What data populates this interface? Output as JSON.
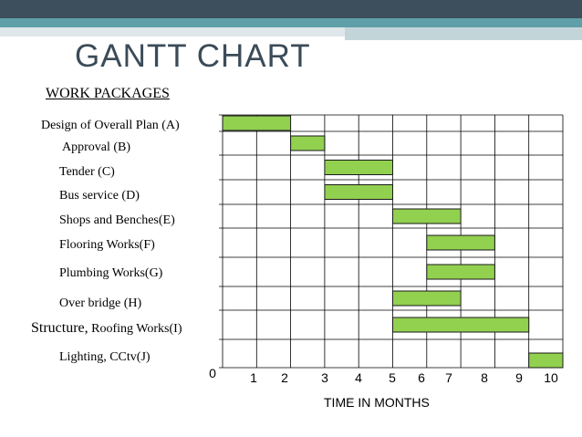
{
  "header": {
    "title": "GANTT CHART",
    "colors": {
      "dark": "#3d4e5c",
      "teal": "#5f9fa8",
      "light": "#dfe7ea"
    }
  },
  "chart_data": {
    "type": "gantt",
    "title": "GANTT CHART",
    "ylabel": "WORK PACKAGES",
    "xlabel": "TIME IN MONTHS",
    "xlim": [
      0,
      10
    ],
    "x_ticks": [
      "0",
      "1",
      "2",
      "3",
      "4",
      "5",
      "6",
      "7",
      "8",
      "9",
      "10"
    ],
    "grid": true,
    "bar_color": "#92d050",
    "tasks": [
      {
        "label": "Design of Overall Plan (A)",
        "start": 0,
        "end": 2
      },
      {
        "label": "Approval (B)",
        "start": 2,
        "end": 3
      },
      {
        "label": "Tender (C)",
        "start": 3,
        "end": 5
      },
      {
        "label": "Bus service (D)",
        "start": 3,
        "end": 5
      },
      {
        "label": "Shops and Benches(E)",
        "start": 5,
        "end": 7
      },
      {
        "label": "Flooring Works(F)",
        "start": 6,
        "end": 8
      },
      {
        "label": "Plumbing Works(G)",
        "start": 6,
        "end": 8
      },
      {
        "label": "Over bridge (H)",
        "start": 5,
        "end": 7
      },
      {
        "label_prefix": "Structure,",
        "label": "Roofing Works(I)",
        "start": 5,
        "end": 9
      },
      {
        "label": "Lighting, CCtv(J)",
        "start": 9,
        "end": 10
      }
    ]
  }
}
